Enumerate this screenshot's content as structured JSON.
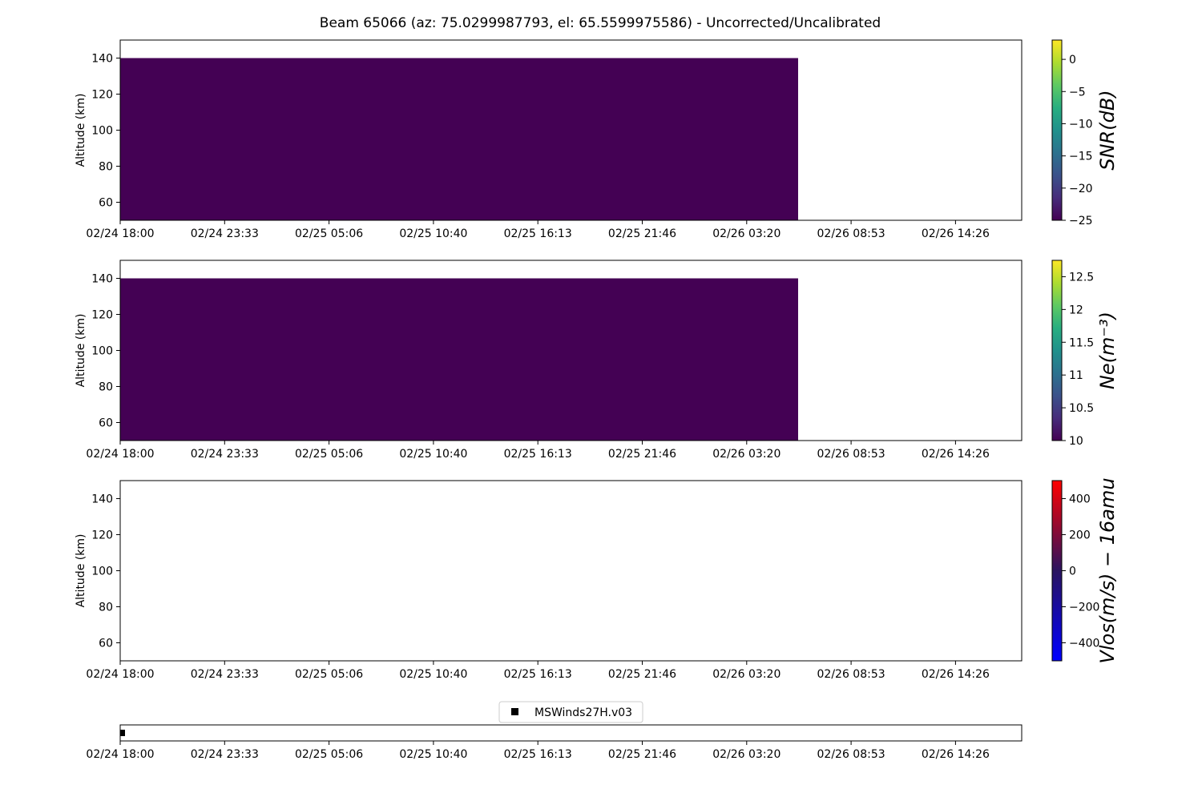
{
  "chart_data": [
    {
      "type": "heatmap",
      "title": "Beam 65066 (az: 75.0299987793, el: 65.5599975586) - Uncorrected/Uncalibrated",
      "xlabel": "",
      "ylabel": "Altitude (km)",
      "x_tick_labels": [
        "02/24 18:00",
        "02/24 23:33",
        "02/25 05:06",
        "02/25 10:40",
        "02/25 16:13",
        "02/25 21:46",
        "02/26 03:20",
        "02/26 08:53",
        "02/26 14:26"
      ],
      "y_ticks": [
        60,
        80,
        100,
        120,
        140
      ],
      "ylim": [
        50,
        150
      ],
      "filled_region": {
        "x_start": "02/24 18:00",
        "x_end": "02/26 05:54",
        "y_range": [
          50,
          140
        ],
        "value": -25,
        "color": "#440154"
      },
      "colorbar": {
        "label": "SNR(dB)",
        "colormap": "viridis",
        "range": [
          -25,
          3
        ],
        "ticks": [
          0,
          -5,
          -10,
          -15,
          -20,
          -25
        ]
      }
    },
    {
      "type": "heatmap",
      "xlabel": "",
      "ylabel": "Altitude (km)",
      "x_tick_labels": [
        "02/24 18:00",
        "02/24 23:33",
        "02/25 05:06",
        "02/25 10:40",
        "02/25 16:13",
        "02/25 21:46",
        "02/26 03:20",
        "02/26 08:53",
        "02/26 14:26"
      ],
      "y_ticks": [
        60,
        80,
        100,
        120,
        140
      ],
      "ylim": [
        50,
        150
      ],
      "filled_region": {
        "x_start": "02/24 18:00",
        "x_end": "02/26 05:54",
        "y_range": [
          50,
          140
        ],
        "value": 10.0,
        "color": "#440154"
      },
      "colorbar": {
        "label": "Ne(m⁻³)",
        "colormap": "viridis",
        "range": [
          10.0,
          12.75
        ],
        "ticks": [
          12.5,
          12.0,
          11.5,
          11.0,
          10.5,
          10.0
        ]
      }
    },
    {
      "type": "heatmap",
      "xlabel": "",
      "ylabel": "Altitude (km)",
      "x_tick_labels": [
        "02/24 18:00",
        "02/24 23:33",
        "02/25 05:06",
        "02/25 10:40",
        "02/25 16:13",
        "02/25 21:46",
        "02/26 03:20",
        "02/26 08:53",
        "02/26 14:26"
      ],
      "y_ticks": [
        60,
        80,
        100,
        120,
        140
      ],
      "ylim": [
        50,
        150
      ],
      "filled_region": null,
      "colorbar": {
        "label": "Vlos(m/s) − 16amu",
        "colormap": "bwr-dark",
        "range": [
          -500,
          500
        ],
        "ticks": [
          400,
          200,
          0,
          -200,
          -400
        ]
      }
    },
    {
      "type": "scatter",
      "x_tick_labels": [
        "02/24 18:00",
        "02/24 23:33",
        "02/25 05:06",
        "02/25 10:40",
        "02/25 16:13",
        "02/25 21:46",
        "02/26 03:20",
        "02/26 08:53",
        "02/26 14:26"
      ],
      "series": [
        {
          "name": "MSWinds27H.v03",
          "x": [
            "02/24 18:00"
          ],
          "marker": "square",
          "color": "#000000"
        }
      ],
      "legend": {
        "entries": [
          "MSWinds27H.v03"
        ],
        "symbol": "■",
        "position": "upper-center"
      }
    }
  ]
}
